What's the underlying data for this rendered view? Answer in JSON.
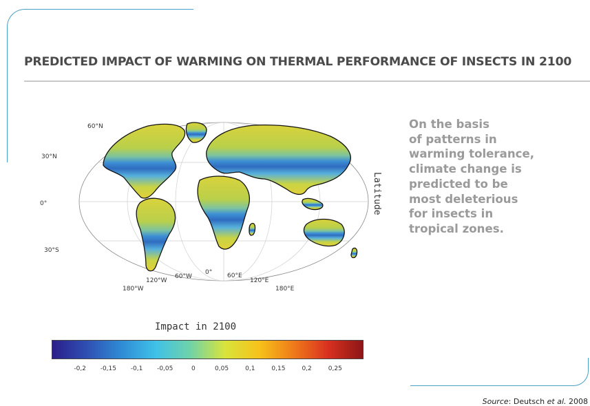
{
  "title": "PREDICTED IMPACT OF WARMING ON THERMAL PERFORMANCE OF INSECTS IN 2100",
  "map": {
    "projection": "world-ellipse",
    "latitude_labels": [
      "60°N",
      "30°N",
      "0°",
      "30°S"
    ],
    "longitude_labels": [
      "180°W",
      "120°W",
      "60°W",
      "0°",
      "60°E",
      "120°E",
      "180°E"
    ],
    "axis_title": "Latitude",
    "colors": {
      "temperate": "#e2d23a",
      "temperate_green": "#9fcb55",
      "tropical_light": "#58b3df",
      "tropical": "#2f79c5",
      "tropical_deep": "#2a4ea8",
      "ocean": "#ffffff",
      "outline": "#111111"
    }
  },
  "colorbar": {
    "title": "Impact in 2100",
    "min": -0.25,
    "max": 0.3,
    "ticks": [
      "-0,2",
      "-0,15",
      "-0,1",
      "-0,05",
      "0",
      "0,05",
      "0,1",
      "0,15",
      "0,2",
      "0,25"
    ],
    "tick_values": [
      -0.2,
      -0.15,
      -0.1,
      -0.05,
      0,
      0.05,
      0.1,
      0.15,
      0.2,
      0.25
    ],
    "colormap": [
      "#2b1e8a",
      "#2f4fb3",
      "#2f8bd5",
      "#3fc1e8",
      "#6fd3a8",
      "#d8e43c",
      "#f6c21a",
      "#ef7a1a",
      "#d8301f",
      "#8c1717"
    ]
  },
  "description_lines": [
    "On the basis",
    "of patterns in",
    "warming tolerance,",
    "climate change is",
    "predicted to be",
    "most deleterious",
    "for insects in",
    "tropical zones."
  ],
  "source": {
    "label": "Source",
    "separator": ": ",
    "author": "Deutsch ",
    "etal": "et al.",
    "year": " 2008"
  }
}
